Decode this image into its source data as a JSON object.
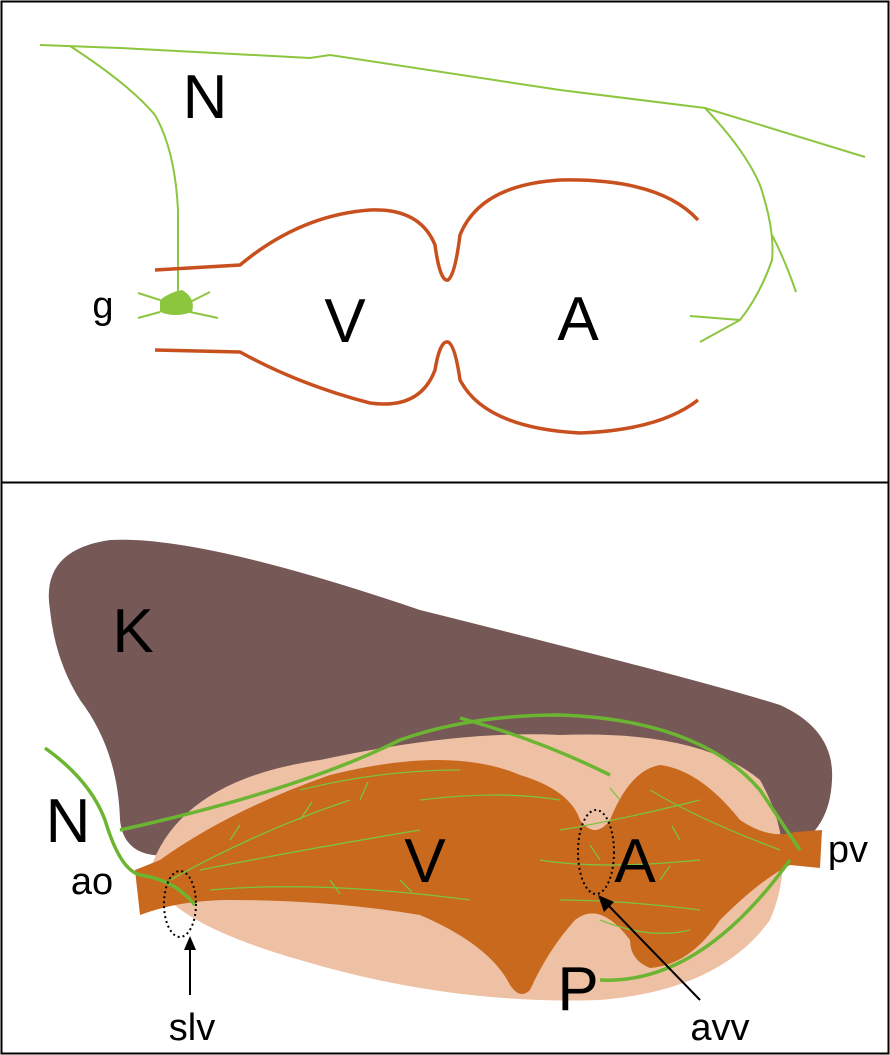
{
  "top_panel": {
    "labels": {
      "nerve": "N",
      "ganglion": "g",
      "ventricle": "V",
      "atrium": "A"
    }
  },
  "bottom_panel": {
    "labels": {
      "kidney": "K",
      "nerve": "N",
      "ventricle": "V",
      "atrium": "A",
      "pulmonary_vein": "pv",
      "aorta": "ao",
      "semilunar_valve": "slv",
      "pericardium": "P",
      "atrioventricular_valve": "avv"
    }
  }
}
